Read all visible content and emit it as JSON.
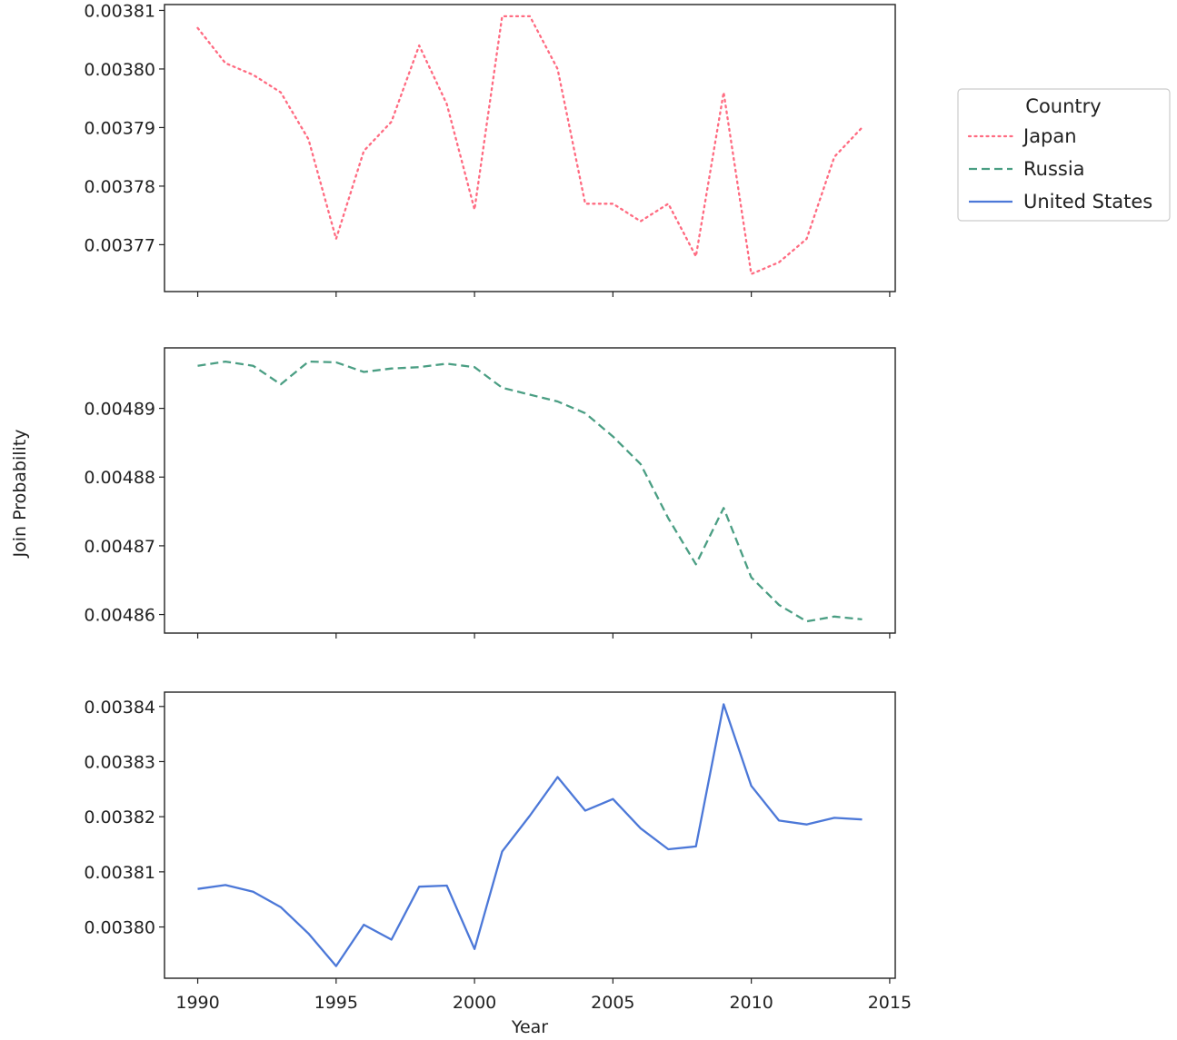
{
  "chart_data": {
    "type": "line",
    "xlabel": "Year",
    "ylabel": "Join Probability",
    "legend": {
      "title": "Country",
      "placement": "right",
      "entries": [
        "Japan",
        "Russia",
        "United States"
      ]
    },
    "xlim": [
      1988.8,
      2015.2
    ],
    "xticks": [
      "1990",
      "1995",
      "2000",
      "2005",
      "2010",
      "2015"
    ],
    "x": [
      1990,
      1991,
      1992,
      1993,
      1994,
      1995,
      1996,
      1997,
      1998,
      1999,
      2000,
      2001,
      2002,
      2003,
      2004,
      2005,
      2006,
      2007,
      2008,
      2009,
      2010,
      2011,
      2012,
      2013,
      2014
    ],
    "grid": false,
    "series": [
      {
        "name": "Japan",
        "color": "#ff6b81",
        "style": "dotted",
        "ylim": [
          0.003762,
          0.003811
        ],
        "yticks": [
          "0.00377",
          "0.00378",
          "0.00379",
          "0.00380",
          "0.00381"
        ],
        "values": [
          0.003807,
          0.003801,
          0.003799,
          0.003796,
          0.003788,
          0.003771,
          0.003786,
          0.003791,
          0.003804,
          0.003794,
          0.003776,
          0.003809,
          0.003809,
          0.0038,
          0.003777,
          0.003777,
          0.003774,
          0.003777,
          0.003768,
          0.003796,
          0.003765,
          0.003767,
          0.003771,
          0.003785,
          0.00379
        ]
      },
      {
        "name": "Russia",
        "color": "#4a9e83",
        "style": "dashed",
        "ylim": [
          0.0048573,
          0.0048988
        ],
        "yticks": [
          "0.00486",
          "0.00487",
          "0.00488",
          "0.00489"
        ],
        "values": [
          0.0048962,
          0.0048968,
          0.0048962,
          0.0048935,
          0.0048968,
          0.0048967,
          0.0048953,
          0.0048958,
          0.004896,
          0.0048965,
          0.004896,
          0.004893,
          0.004892,
          0.004891,
          0.0048893,
          0.0048859,
          0.0048819,
          0.004874,
          0.0048673,
          0.0048755,
          0.0048654,
          0.0048614,
          0.004859,
          0.0048597,
          0.0048593
        ]
      },
      {
        "name": "United States",
        "color": "#4c78d8",
        "style": "solid",
        "ylim": [
          0.0037907,
          0.0038426
        ],
        "yticks": [
          "0.00380",
          "0.00381",
          "0.00382",
          "0.00383",
          "0.00384"
        ],
        "values": [
          0.0038069,
          0.0038076,
          0.0038064,
          0.0038036,
          0.0037988,
          0.0037929,
          0.0038004,
          0.0037977,
          0.0038073,
          0.0038075,
          0.003796,
          0.0038137,
          0.0038202,
          0.0038272,
          0.0038211,
          0.0038232,
          0.0038179,
          0.0038141,
          0.0038146,
          0.0038404,
          0.0038256,
          0.0038193,
          0.0038186,
          0.0038198,
          0.0038195
        ]
      }
    ]
  }
}
